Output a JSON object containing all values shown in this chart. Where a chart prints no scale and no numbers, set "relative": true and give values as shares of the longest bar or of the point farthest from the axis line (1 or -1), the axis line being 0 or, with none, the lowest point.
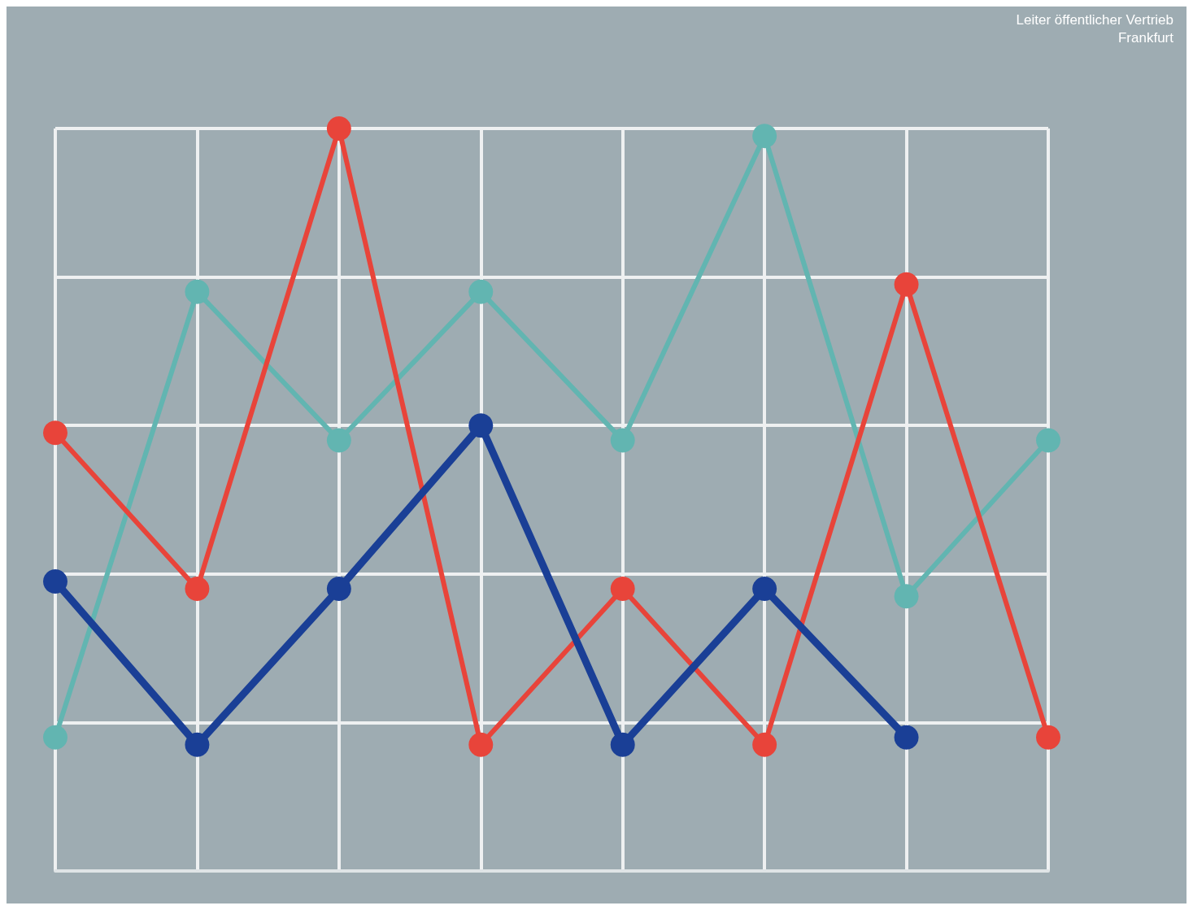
{
  "chart_data": {
    "type": "line",
    "relative": true,
    "categories": [
      null,
      null,
      null,
      null,
      null,
      null,
      null,
      null
    ],
    "series": [
      {
        "color": "#62b5b1",
        "values": [
          0.18,
          0.78,
          0.58,
          0.78,
          0.58,
          0.99,
          0.37,
          0.58
        ]
      },
      {
        "color": "#e8443a",
        "values": [
          0.59,
          0.38,
          1.0,
          0.17,
          0.38,
          0.17,
          0.79,
          0.18
        ]
      },
      {
        "color": "#1a3f96",
        "values": [
          0.39,
          0.17,
          0.38,
          0.6,
          0.17,
          0.38,
          0.18,
          null
        ]
      }
    ],
    "marker": "circle",
    "grid": true,
    "annotations": [
      "Leiter öffentlicher Vertrieb",
      "Frankfurt"
    ]
  }
}
